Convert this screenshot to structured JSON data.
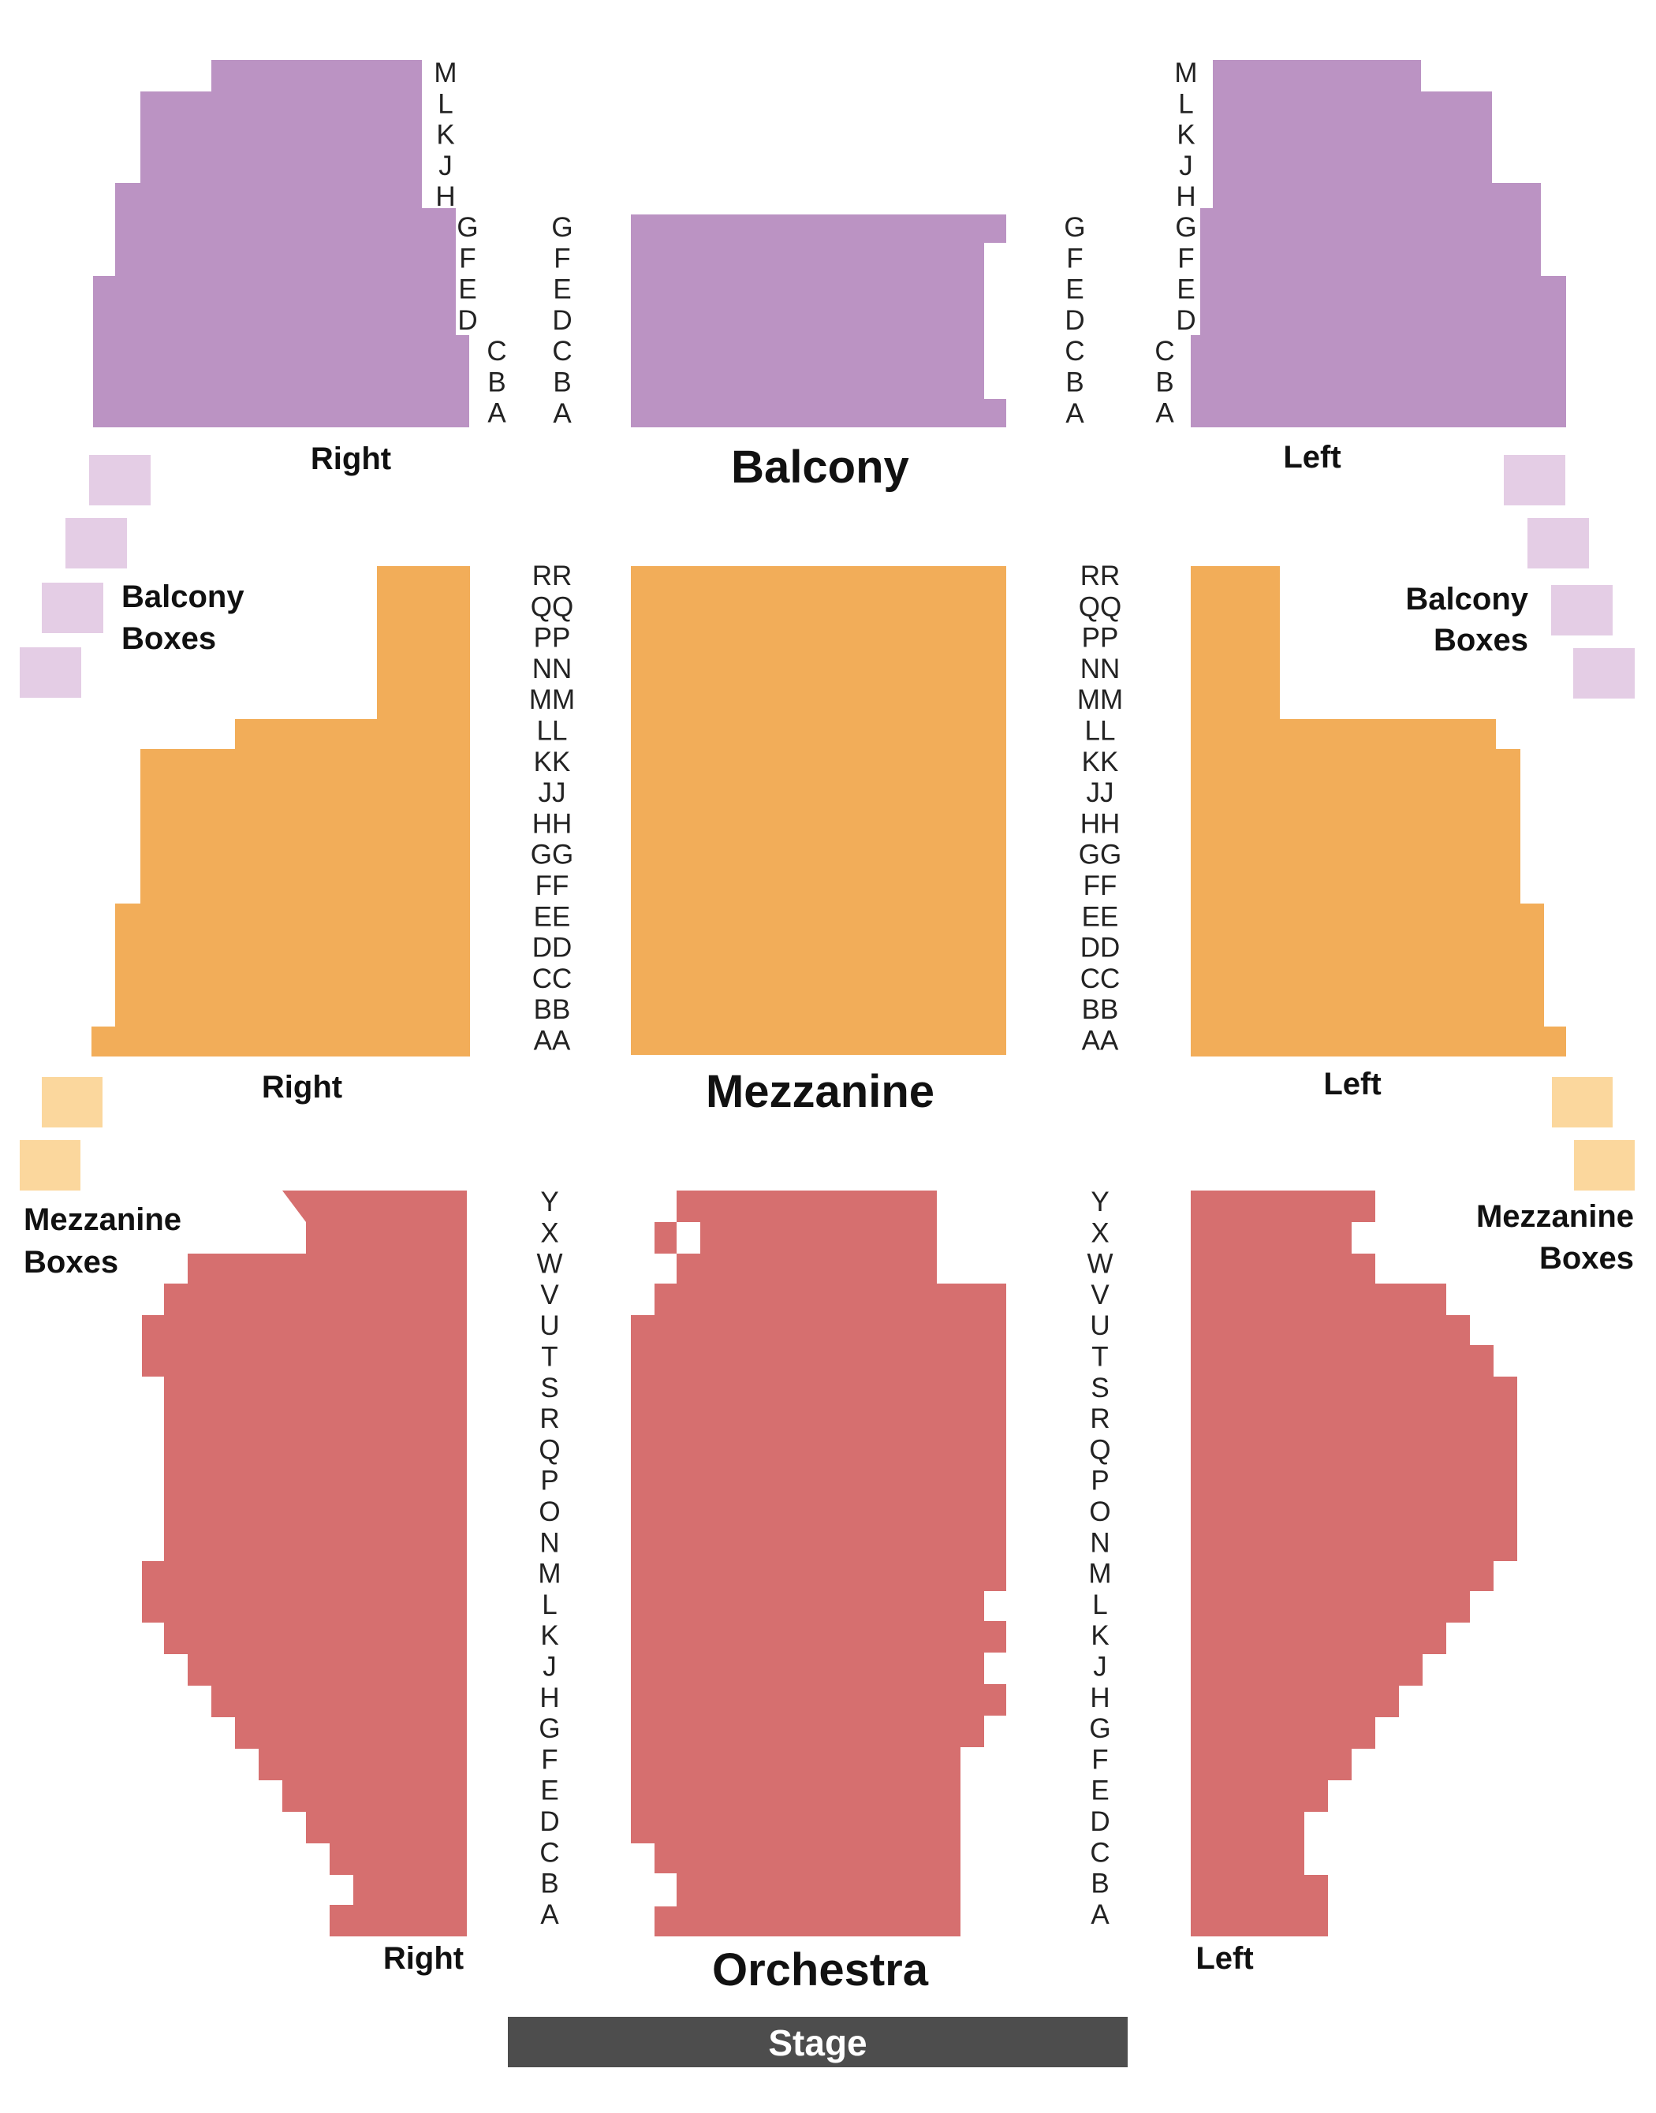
{
  "colors": {
    "balcony": "#bb93c3",
    "balcony_boxes": "#e4cde5",
    "mezzanine": "#f2ad59",
    "mezzanine_boxes": "#fbd79d",
    "orchestra": "#d66f6f",
    "stage": "#4d4d4d"
  },
  "labels": {
    "balcony": "Balcony",
    "mezzanine": "Mezzanine",
    "orchestra": "Orchestra",
    "stage": "Stage",
    "balcony_right": "Right",
    "balcony_left": "Left",
    "mezzanine_right": "Right",
    "mezzanine_left": "Left",
    "orchestra_right": "Right",
    "orchestra_left": "Left",
    "balcony_boxes_left_line1": "Balcony",
    "balcony_boxes_left_line2": "Boxes",
    "balcony_boxes_right_line1": "Balcony",
    "balcony_boxes_right_line2": "Boxes",
    "mezzanine_boxes_left_line1": "Mezzanine",
    "mezzanine_boxes_left_line2": "Boxes",
    "mezzanine_boxes_right_line1": "Mezzanine",
    "mezzanine_boxes_right_line2": "Boxes"
  },
  "rows": {
    "balcony_side_upper": [
      "M",
      "L",
      "K",
      "J",
      "H"
    ],
    "balcony_side_mid": [
      "G",
      "F",
      "E",
      "D"
    ],
    "balcony_side_lower": [
      "C",
      "B",
      "A"
    ],
    "balcony_center": [
      "G",
      "F",
      "E",
      "D",
      "C",
      "B",
      "A"
    ],
    "mezzanine": [
      "RR",
      "QQ",
      "PP",
      "NN",
      "MM",
      "LL",
      "KK",
      "JJ",
      "HH",
      "GG",
      "FF",
      "EE",
      "DD",
      "CC",
      "BB",
      "AA"
    ],
    "orchestra": [
      "Y",
      "X",
      "W",
      "V",
      "U",
      "T",
      "S",
      "R",
      "Q",
      "P",
      "O",
      "N",
      "M",
      "L",
      "K",
      "J",
      "H",
      "G",
      "F",
      "E",
      "D",
      "C",
      "B",
      "A"
    ]
  }
}
